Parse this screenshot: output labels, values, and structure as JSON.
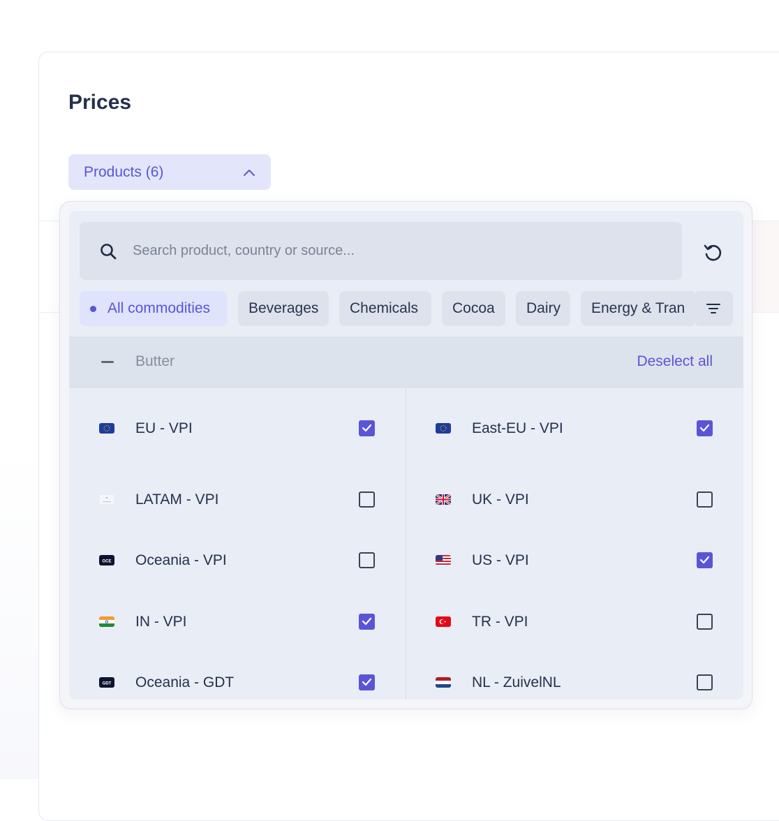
{
  "page": {
    "title": "Prices"
  },
  "products_dropdown": {
    "label": "Products (6)"
  },
  "search": {
    "placeholder": "Search product, country or source...",
    "value": ""
  },
  "chips": [
    {
      "label": "All commodities",
      "active": true
    },
    {
      "label": "Beverages",
      "active": false
    },
    {
      "label": "Chemicals",
      "active": false
    },
    {
      "label": "Cocoa",
      "active": false
    },
    {
      "label": "Dairy",
      "active": false
    },
    {
      "label": "Energy & Tran",
      "active": false
    }
  ],
  "group": {
    "name": "Butter",
    "deselect_label": "Deselect all"
  },
  "items": [
    {
      "label": "EU - VPI",
      "checked": true,
      "flag": "eu-flag-icon"
    },
    {
      "label": "East-EU - VPI",
      "checked": true,
      "flag": "eu-flag-icon"
    },
    {
      "label": "LATAM - VPI",
      "checked": false,
      "flag": "latam-flag-icon"
    },
    {
      "label": "UK - VPI",
      "checked": false,
      "flag": "uk-flag-icon"
    },
    {
      "label": "Oceania - VPI",
      "checked": false,
      "flag": "oce-badge-icon",
      "badge": "OCE"
    },
    {
      "label": "US - VPI",
      "checked": true,
      "flag": "us-flag-icon"
    },
    {
      "label": "IN - VPI",
      "checked": true,
      "flag": "in-flag-icon"
    },
    {
      "label": "TR - VPI",
      "checked": false,
      "flag": "tr-flag-icon"
    },
    {
      "label": "Oceania - GDT",
      "checked": true,
      "flag": "gdt-badge-icon",
      "badge": "GDT"
    },
    {
      "label": "NL - ZuivelNL",
      "checked": false,
      "flag": "nl-flag-icon"
    }
  ],
  "colors": {
    "accent": "#5a55d6",
    "chip_bg": "#dde2ec",
    "panel_bg": "#e9edf5"
  }
}
